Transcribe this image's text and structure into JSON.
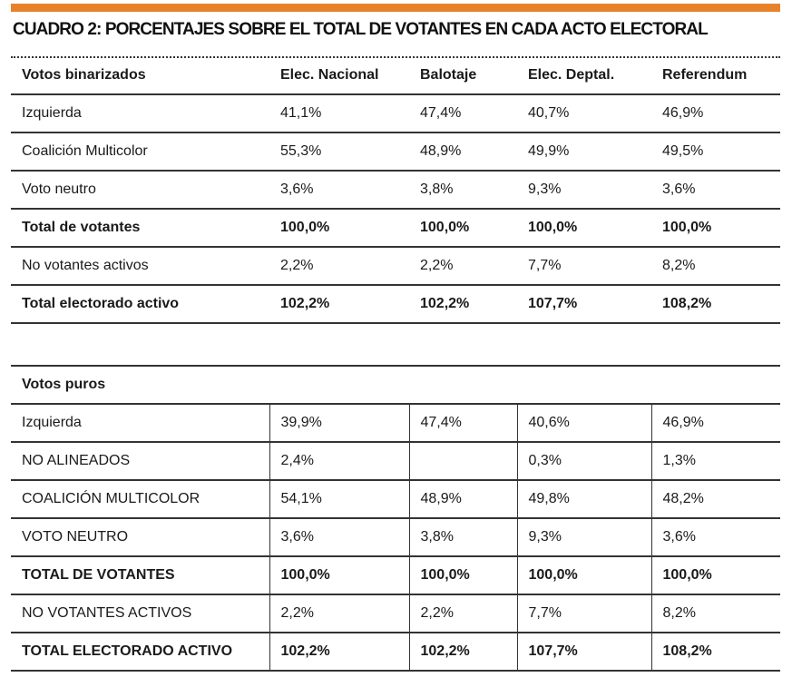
{
  "title": "CUADRO 2: PORCENTAJES SOBRE EL TOTAL DE VOTANTES EN CADA ACTO ELECTORAL",
  "accent_color": "#e8822a",
  "table1": {
    "header": [
      "Votos binarizados",
      "Elec. Nacional",
      "Balotaje",
      "Elec. Deptal.",
      "Referendum"
    ],
    "rows": [
      {
        "label": "Izquierda",
        "values": [
          "41,1%",
          "47,4%",
          "40,7%",
          "46,9%"
        ],
        "bold": false
      },
      {
        "label": "Coalición Multicolor",
        "values": [
          "55,3%",
          "48,9%",
          "49,9%",
          "49,5%"
        ],
        "bold": false
      },
      {
        "label": "Voto neutro",
        "values": [
          "3,6%",
          "3,8%",
          "9,3%",
          "3,6%"
        ],
        "bold": false
      },
      {
        "label": "Total de votantes",
        "values": [
          "100,0%",
          "100,0%",
          "100,0%",
          "100,0%"
        ],
        "bold": true
      },
      {
        "label": "No votantes activos",
        "values": [
          "2,2%",
          "2,2%",
          "7,7%",
          "8,2%"
        ],
        "bold": false
      },
      {
        "label": "Total electorado activo",
        "values": [
          "102,2%",
          "102,2%",
          "107,7%",
          "108,2%"
        ],
        "bold": true
      }
    ]
  },
  "table2": {
    "section_label": "Votos puros",
    "rows": [
      {
        "label": "Izquierda",
        "values": [
          "39,9%",
          "47,4%",
          "40,6%",
          "46,9%"
        ],
        "bold": false
      },
      {
        "label": "NO ALINEADOS",
        "values": [
          "2,4%",
          "",
          "0,3%",
          "1,3%"
        ],
        "bold": false
      },
      {
        "label": "COALICIÓN MULTICOLOR",
        "values": [
          "54,1%",
          "48,9%",
          "49,8%",
          "48,2%"
        ],
        "bold": false
      },
      {
        "label": "VOTO NEUTRO",
        "values": [
          "3,6%",
          "3,8%",
          "9,3%",
          "3,6%"
        ],
        "bold": false
      },
      {
        "label": "TOTAL DE VOTANTES",
        "values": [
          "100,0%",
          "100,0%",
          "100,0%",
          "100,0%"
        ],
        "bold": true
      },
      {
        "label": "NO VOTANTES ACTIVOS",
        "values": [
          "2,2%",
          "2,2%",
          "7,7%",
          "8,2%"
        ],
        "bold": false
      },
      {
        "label": "TOTAL ELECTORADO ACTIVO",
        "values": [
          "102,2%",
          "102,2%",
          "107,7%",
          "108,2%"
        ],
        "bold": true
      }
    ]
  }
}
